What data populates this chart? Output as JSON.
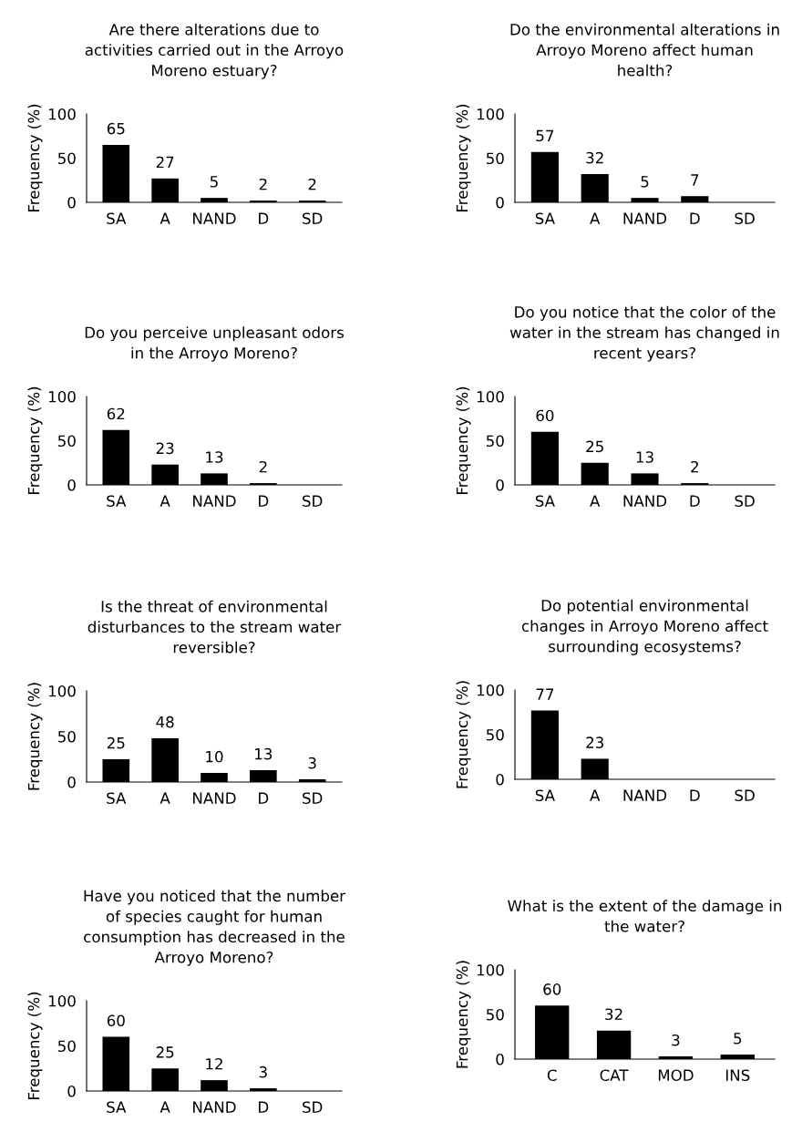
{
  "chart_data": [
    {
      "type": "bar",
      "title": "Are there alterations due to\nactivities carried out in the Arroyo\nMoreno estuary?",
      "ylabel": "Frequency (%)",
      "categories": [
        "SA",
        "A",
        "NAND",
        "D",
        "SD"
      ],
      "values": [
        65,
        27,
        5,
        2,
        2
      ],
      "value_labels": [
        "65",
        "27",
        "5",
        "2",
        "2"
      ],
      "color": "#000000",
      "ylim": [
        0,
        100
      ],
      "yticks": [
        0,
        50,
        100
      ],
      "grid": false
    },
    {
      "type": "bar",
      "title": "Do the environmental alterations in\nArroyo Moreno affect human\nhealth?",
      "ylabel": "Frequency (%)",
      "categories": [
        "SA",
        "A",
        "NAND",
        "D",
        "SD"
      ],
      "values": [
        57,
        32,
        5,
        7,
        0
      ],
      "value_labels": [
        "57",
        "32",
        "5",
        "7",
        null
      ],
      "color": "#000000",
      "ylim": [
        0,
        100
      ],
      "yticks": [
        0,
        50,
        100
      ],
      "grid": false
    },
    {
      "type": "bar",
      "title": "Do you perceive unpleasant odors\nin the Arroyo Moreno?",
      "ylabel": "Frequency (%)",
      "categories": [
        "SA",
        "A",
        "NAND",
        "D",
        "SD"
      ],
      "values": [
        62,
        23,
        13,
        2,
        0
      ],
      "value_labels": [
        "62",
        "23",
        "13",
        "2",
        null
      ],
      "color": "#000000",
      "ylim": [
        0,
        100
      ],
      "yticks": [
        0,
        50,
        100
      ],
      "grid": false
    },
    {
      "type": "bar",
      "title": "Do you notice that the color of the\nwater in the stream has changed in\nrecent years?",
      "ylabel": "Frequency (%)",
      "categories": [
        "SA",
        "A",
        "NAND",
        "D",
        "SD"
      ],
      "values": [
        60,
        25,
        13,
        2,
        0
      ],
      "value_labels": [
        "60",
        "25",
        "13",
        "2",
        null
      ],
      "color": "#000000",
      "ylim": [
        0,
        100
      ],
      "yticks": [
        0,
        50,
        100
      ],
      "grid": false
    },
    {
      "type": "bar",
      "title": "Is the threat of environmental\ndisturbances to the stream water\nreversible?",
      "ylabel": "Frequency (%)",
      "categories": [
        "SA",
        "A",
        "NAND",
        "D",
        "SD"
      ],
      "values": [
        25,
        48,
        10,
        13,
        3
      ],
      "value_labels": [
        "25",
        "48",
        "10",
        "13",
        "3"
      ],
      "color": "#000000",
      "ylim": [
        0,
        100
      ],
      "yticks": [
        0,
        50,
        100
      ],
      "grid": false
    },
    {
      "type": "bar",
      "title": "Do potential environmental\nchanges in Arroyo Moreno affect\nsurrounding ecosystems?",
      "ylabel": "Frequency (%)",
      "categories": [
        "SA",
        "A",
        "NAND",
        "D",
        "SD"
      ],
      "values": [
        77,
        23,
        0,
        0,
        0
      ],
      "value_labels": [
        "77",
        "23",
        null,
        null,
        null
      ],
      "color": "#000000",
      "ylim": [
        0,
        100
      ],
      "yticks": [
        0,
        50,
        100
      ],
      "grid": false
    },
    {
      "type": "bar",
      "title": "Have you noticed that the number\nof species caught for human\nconsumption has decreased in the\nArroyo Moreno?",
      "ylabel": "Frequency (%)",
      "categories": [
        "SA",
        "A",
        "NAND",
        "D",
        "SD"
      ],
      "values": [
        60,
        25,
        12,
        3,
        0
      ],
      "value_labels": [
        "60",
        "25",
        "12",
        "3",
        null
      ],
      "color": "#000000",
      "ylim": [
        0,
        100
      ],
      "yticks": [
        0,
        50,
        100
      ],
      "grid": false
    },
    {
      "type": "bar",
      "title": "What is the extent of the damage in\nthe water?",
      "ylabel": "Frequency (%)",
      "categories": [
        "C",
        "CAT",
        "MOD",
        "INS"
      ],
      "values": [
        60,
        32,
        3,
        5
      ],
      "value_labels": [
        "60",
        "32",
        "3",
        "5"
      ],
      "color": "#000000",
      "ylim": [
        0,
        100
      ],
      "yticks": [
        0,
        50,
        100
      ],
      "grid": false
    }
  ]
}
